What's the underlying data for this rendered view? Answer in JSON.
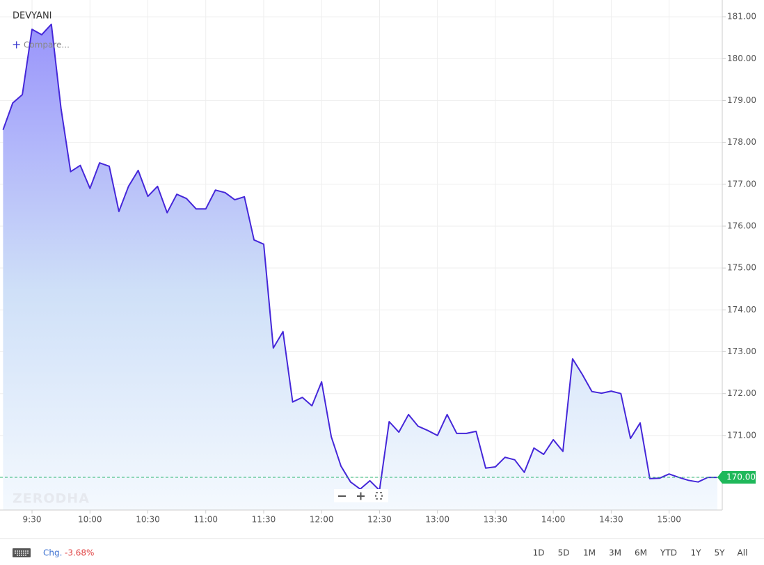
{
  "chart_data": {
    "type": "line",
    "title": "DEVYANI",
    "categories": [
      null,
      null,
      null,
      "9:30",
      null,
      null,
      null,
      null,
      null,
      "10:00",
      null,
      null,
      null,
      null,
      null,
      "10:30",
      null,
      null,
      null,
      null,
      null,
      "11:00",
      null,
      null,
      null,
      null,
      null,
      "11:30",
      null,
      null,
      null,
      null,
      null,
      "12:00",
      null,
      null,
      null,
      null,
      null,
      "12:30",
      null,
      null,
      null,
      null,
      null,
      "13:00",
      null,
      null,
      null,
      null,
      null,
      "13:30",
      null,
      null,
      null,
      null,
      null,
      "14:00",
      null,
      null,
      null,
      null,
      null,
      "14:30",
      null,
      null,
      null,
      null,
      null,
      "15:00",
      null,
      null,
      null,
      null,
      null
    ],
    "series": [
      {
        "name": "DEVYANI",
        "color": "#4527d9",
        "values": [
          178.3,
          178.94,
          179.14,
          180.7,
          180.57,
          180.82,
          178.82,
          177.3,
          177.45,
          176.9,
          177.51,
          177.43,
          176.35,
          176.95,
          177.33,
          176.71,
          176.95,
          176.32,
          176.76,
          176.66,
          176.41,
          176.41,
          176.86,
          176.8,
          176.63,
          176.7,
          175.67,
          175.57,
          173.09,
          173.48,
          171.8,
          171.91,
          171.71,
          172.28,
          170.97,
          170.27,
          169.89,
          169.72,
          169.92,
          169.69,
          171.33,
          171.08,
          171.5,
          171.22,
          171.12,
          171.0,
          171.5,
          171.05,
          171.05,
          171.1,
          170.22,
          170.25,
          170.48,
          170.42,
          170.12,
          170.7,
          170.55,
          170.9,
          170.62,
          172.83,
          172.46,
          172.05,
          172.01,
          172.06,
          172.0,
          170.93,
          171.3,
          169.97,
          169.98,
          170.08,
          170.0,
          169.93,
          169.89,
          170.0,
          170.0
        ]
      }
    ],
    "ylim": [
      169.22,
      181.4
    ],
    "yticks": [
      {
        "value": 170,
        "label": "170.00"
      },
      {
        "value": 171,
        "label": "171.00"
      },
      {
        "value": 172,
        "label": "172.00"
      },
      {
        "value": 173,
        "label": "173.00"
      },
      {
        "value": 174,
        "label": "174.00"
      },
      {
        "value": 175,
        "label": "175.00"
      },
      {
        "value": 176,
        "label": "176.00"
      },
      {
        "value": 177,
        "label": "177.00"
      },
      {
        "value": 178,
        "label": "178.00"
      },
      {
        "value": 179,
        "label": "179.00"
      },
      {
        "value": 180,
        "label": "180.00"
      },
      {
        "value": 181,
        "label": "181.00"
      }
    ],
    "grid": true,
    "price_line": {
      "value": 170,
      "label": "170.00"
    },
    "watermark": "ZERODHA"
  },
  "ui": {
    "compare": "Compare...",
    "change_label": "Chg.",
    "change_value": "-3.68%",
    "ranges": [
      "1D",
      "5D",
      "1M",
      "3M",
      "6M",
      "YTD",
      "1Y",
      "5Y",
      "All"
    ]
  }
}
